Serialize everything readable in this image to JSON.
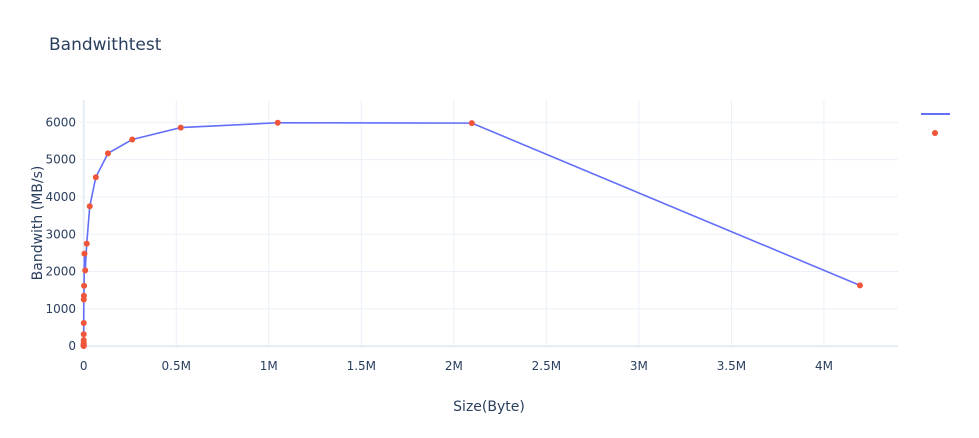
{
  "chart_data": {
    "type": "scatter",
    "title": "Bandwithtest",
    "xlabel": "Size(Byte)",
    "ylabel": "Bandwith (MB/s)",
    "xlim": [
      -20000,
      4400000
    ],
    "ylim": [
      -50,
      6600
    ],
    "x_ticks": [
      0,
      500000,
      1000000,
      1500000,
      2000000,
      2500000,
      3000000,
      3500000,
      4000000
    ],
    "x_tick_labels": [
      "0",
      "0.5M",
      "1M",
      "1.5M",
      "2M",
      "2.5M",
      "3M",
      "3.5M",
      "4M"
    ],
    "y_ticks": [
      0,
      1000,
      2000,
      3000,
      4000,
      5000,
      6000
    ],
    "y_tick_labels": [
      "0",
      "1000",
      "2000",
      "3000",
      "4000",
      "5000",
      "6000"
    ],
    "grid": true,
    "legend": "right",
    "colors": {
      "line": "#636efa",
      "markers": "#ef553b",
      "grid": "#ebf0f8",
      "zeroline": "#e5ecf6",
      "text": "#2a3f5f"
    },
    "series": [
      {
        "mode": "lines",
        "x": [
          2,
          4,
          8,
          16,
          32,
          64,
          128,
          256,
          512,
          1024,
          2048,
          4096,
          8192,
          16384,
          32768,
          65536,
          131072,
          262144,
          524288,
          1048576,
          2097152,
          4194304
        ],
        "y": [
          5,
          10,
          20,
          40,
          80,
          160,
          320,
          620,
          1250,
          1350,
          1620,
          2480,
          2030,
          2750,
          3750,
          4530,
          5170,
          5540,
          5860,
          5990,
          5980,
          1630
        ]
      },
      {
        "mode": "markers",
        "x": [
          2,
          4,
          8,
          16,
          32,
          64,
          128,
          256,
          512,
          1024,
          2048,
          4096,
          8192,
          16384,
          32768,
          65536,
          131072,
          262144,
          524288,
          1048576,
          2097152,
          4194304
        ],
        "y": [
          5,
          10,
          20,
          40,
          80,
          160,
          320,
          620,
          1250,
          1350,
          1620,
          2480,
          2030,
          2750,
          3750,
          4530,
          5170,
          5540,
          5860,
          5990,
          5980,
          1630
        ]
      }
    ]
  }
}
